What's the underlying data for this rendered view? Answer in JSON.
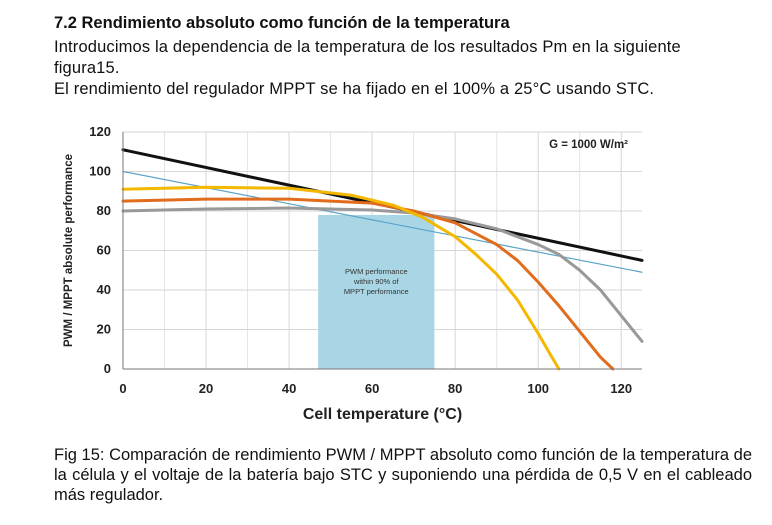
{
  "section": {
    "heading": "7.2 Rendimiento absoluto como función de la temperatura",
    "intro_line1": "Introducimos la dependencia de la temperatura de los resultados Pm en la siguiente",
    "intro_line2": "figura15.",
    "intro_line3": "El rendimiento del regulador MPPT se ha fijado en el 100% a 25°C usando STC."
  },
  "caption": "Fig 15: Comparación de rendimiento PWM / MPPT absoluto como función de la temperatura de la célula y el voltaje de la batería bajo STC y suponiendo una pérdida de 0,5 V en el cableado más regulador.",
  "chart_data": {
    "type": "line",
    "xlabel": "Cell temperature (°C)",
    "ylabel": "PWM / MPPT absolute performance",
    "xlim": [
      0,
      125
    ],
    "ylim": [
      0,
      120
    ],
    "x_ticks": [
      0,
      20,
      40,
      60,
      80,
      100,
      120
    ],
    "y_ticks": [
      0,
      20,
      40,
      60,
      80,
      100,
      120
    ],
    "grid": true,
    "annotation_top_right": "G = 1000 W/m²",
    "shaded_region": {
      "x": [
        47,
        75
      ],
      "y": [
        0,
        78
      ],
      "color": "#a9d6e4",
      "label_lines": [
        "PWM performance",
        "within 90% of",
        "MPPT performance"
      ]
    },
    "series": [
      {
        "color": "#111111",
        "x": [
          0,
          125
        ],
        "y": [
          111,
          55
        ]
      },
      {
        "color": "#5ba3c8",
        "x": [
          0,
          125
        ],
        "y": [
          100,
          49
        ]
      },
      {
        "color": "#999999",
        "x": [
          0,
          20,
          40,
          60,
          70,
          80,
          90,
          100,
          105,
          110,
          115,
          120,
          125
        ],
        "y": [
          80,
          81,
          81.5,
          80.5,
          79,
          76,
          71,
          63,
          58,
          50,
          40,
          27,
          14
        ]
      },
      {
        "color": "#e06c1c",
        "x": [
          0,
          20,
          40,
          60,
          70,
          80,
          90,
          95,
          100,
          105,
          110,
          115,
          118
        ],
        "y": [
          85,
          86,
          86,
          84,
          80,
          74,
          63,
          55,
          44,
          32,
          19,
          6,
          0
        ]
      },
      {
        "color": "#f5b800",
        "x": [
          0,
          20,
          40,
          55,
          65,
          72,
          80,
          85,
          90,
          95,
          100,
          103,
          105
        ],
        "y": [
          91,
          92,
          91.5,
          88,
          83,
          77,
          67,
          58,
          48,
          35,
          18,
          7,
          0
        ]
      }
    ]
  }
}
